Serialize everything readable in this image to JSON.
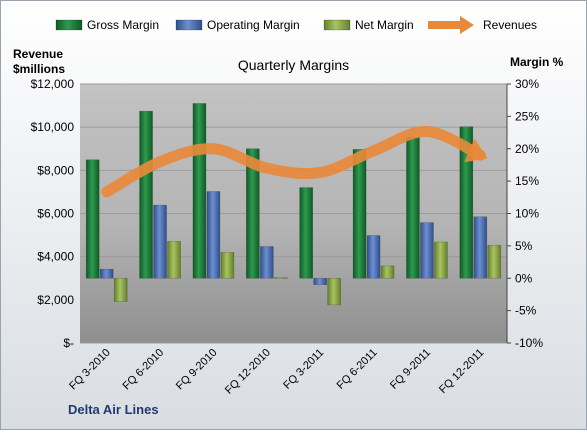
{
  "chart_data": {
    "type": "bar",
    "title": "Quarterly Margins",
    "company": "Delta Air Lines",
    "y_left_label_line1": "Revenue",
    "y_left_label_line2": "$millions",
    "y_right_label": "Margin %",
    "categories": [
      "FQ 3-2010",
      "FQ 6-2010",
      "FQ 9-2010",
      "FQ 12-2010",
      "FQ 3-2011",
      "FQ 6-2011",
      "FQ 9-2011",
      "FQ 12-2011"
    ],
    "series": [
      {
        "name": "Gross Margin",
        "axis": "right",
        "kind": "bar",
        "color": "#1E7A3A",
        "values": [
          18.3,
          25.8,
          27.0,
          20.0,
          14.0,
          19.9,
          21.8,
          23.4
        ]
      },
      {
        "name": "Operating Margin",
        "axis": "right",
        "kind": "bar",
        "color": "#4A6FB0",
        "values": [
          1.4,
          11.3,
          13.4,
          4.9,
          -1.0,
          6.6,
          8.6,
          9.5
        ]
      },
      {
        "name": "Net Margin",
        "axis": "right",
        "kind": "bar",
        "color": "#8DA84A",
        "values": [
          -3.6,
          5.7,
          4.0,
          0.1,
          -4.1,
          1.9,
          5.6,
          5.1
        ]
      },
      {
        "name": "Revenues",
        "axis": "left",
        "kind": "line",
        "color": "#E8893A",
        "values": [
          7000,
          8400,
          9000,
          8100,
          7900,
          8900,
          9800,
          8700
        ]
      }
    ],
    "ylim_left": [
      0,
      12000
    ],
    "ylim_right": [
      -10,
      30
    ],
    "y_left_ticks": [
      "$-",
      "$2,000",
      "$4,000",
      "$6,000",
      "$8,000",
      "$10,000",
      "$12,000"
    ],
    "y_right_ticks": [
      "-10%",
      "-5%",
      "0%",
      "5%",
      "10%",
      "15%",
      "20%",
      "25%",
      "30%"
    ],
    "legend_position": "top",
    "grid": true
  }
}
